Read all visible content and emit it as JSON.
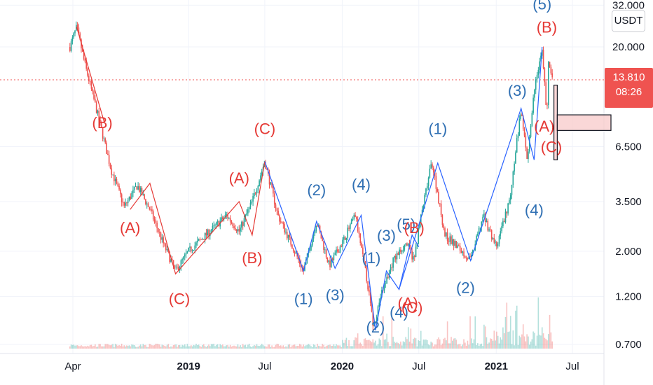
{
  "chart_data": {
    "type": "candlestick",
    "currency": "USDT",
    "current_price": "13.810",
    "countdown": "08:26",
    "colors": {
      "up": "#26a69a",
      "down": "#ef5350",
      "wave_red": "#e53935",
      "wave_blue": "#2962ff",
      "label_blue": "#2f6fb3",
      "price_line": "#ef5350"
    },
    "y_axis": {
      "scale": "log",
      "ticks": [
        "32.000",
        "20.000",
        "13.810",
        "6.500",
        "3.500",
        "2.000",
        "1.200",
        "0.700"
      ]
    },
    "x_axis": {
      "ticks": [
        {
          "label": "Apr",
          "bold": false
        },
        {
          "label": "2019",
          "bold": true
        },
        {
          "label": "Jul",
          "bold": false
        },
        {
          "label": "2020",
          "bold": true
        },
        {
          "label": "Jul",
          "bold": false
        },
        {
          "label": "2021",
          "bold": true
        },
        {
          "label": "Jul",
          "bold": false
        }
      ]
    },
    "price_path": [
      [
        "2018-03-25",
        20
      ],
      [
        "2018-04-10",
        25
      ],
      [
        "2018-05-01",
        16
      ],
      [
        "2018-06-01",
        9
      ],
      [
        "2018-07-01",
        5
      ],
      [
        "2018-08-01",
        3.3
      ],
      [
        "2018-09-01",
        4.2
      ],
      [
        "2018-10-01",
        3.2
      ],
      [
        "2018-11-01",
        2.2
      ],
      [
        "2018-12-01",
        1.6
      ],
      [
        "2019-01-01",
        2.0
      ],
      [
        "2019-02-01",
        2.3
      ],
      [
        "2019-03-01",
        2.6
      ],
      [
        "2019-04-01",
        3.0
      ],
      [
        "2019-05-01",
        2.5
      ],
      [
        "2019-06-01",
        3.5
      ],
      [
        "2019-07-01",
        5.5
      ],
      [
        "2019-08-01",
        3.0
      ],
      [
        "2019-09-01",
        2.2
      ],
      [
        "2019-10-01",
        1.6
      ],
      [
        "2019-11-01",
        2.8
      ],
      [
        "2019-12-01",
        1.7
      ],
      [
        "2020-01-01",
        2.2
      ],
      [
        "2020-02-01",
        3.0
      ],
      [
        "2020-03-01",
        1.4
      ],
      [
        "2020-03-15",
        0.85
      ],
      [
        "2020-04-01",
        1.2
      ],
      [
        "2020-05-01",
        1.8
      ],
      [
        "2020-06-01",
        2.2
      ],
      [
        "2020-06-20",
        1.8
      ],
      [
        "2020-07-01",
        2.6
      ],
      [
        "2020-08-01",
        5.5
      ],
      [
        "2020-09-01",
        2.4
      ],
      [
        "2020-10-01",
        2.1
      ],
      [
        "2020-11-01",
        1.8
      ],
      [
        "2020-12-01",
        3.0
      ],
      [
        "2021-01-01",
        2.1
      ],
      [
        "2021-02-01",
        3.5
      ],
      [
        "2021-03-01",
        10.0
      ],
      [
        "2021-03-15",
        5.5
      ],
      [
        "2021-04-01",
        12.0
      ],
      [
        "2021-04-20",
        20.0
      ],
      [
        "2021-05-01",
        9.0
      ],
      [
        "2021-05-05",
        17.0
      ],
      [
        "2021-05-15",
        13.81
      ]
    ],
    "wave_lines": [
      {
        "color": "red",
        "points": [
          [
            "2018-04-10",
            25
          ],
          [
            "2018-06-15",
            8.5
          ]
        ]
      },
      {
        "color": "red",
        "points": [
          [
            "2018-08-15",
            3.2
          ],
          [
            "2018-10-01",
            4.3
          ],
          [
            "2018-12-01",
            1.55
          ],
          [
            "2019-05-01",
            3.5
          ],
          [
            "2019-06-01",
            2.4
          ],
          [
            "2019-07-01",
            5.5
          ]
        ]
      },
      {
        "color": "blue",
        "points": [
          [
            "2019-07-01",
            5.5
          ],
          [
            "2019-10-01",
            1.6
          ],
          [
            "2019-11-01",
            2.8
          ],
          [
            "2019-12-15",
            1.65
          ],
          [
            "2020-02-15",
            3.0
          ],
          [
            "2020-03-20",
            0.82
          ],
          [
            "2020-04-15",
            1.6
          ],
          [
            "2020-05-15",
            1.3
          ],
          [
            "2020-06-15",
            2.4
          ],
          [
            "2020-07-01",
            2.1
          ]
        ]
      },
      {
        "color": "blue",
        "points": [
          [
            "2020-05-15",
            1.3
          ],
          [
            "2020-08-15",
            5.4
          ],
          [
            "2020-11-01",
            1.8
          ],
          [
            "2021-03-01",
            10.0
          ],
          [
            "2021-04-01",
            5.6
          ],
          [
            "2021-04-20",
            20.0
          ]
        ]
      }
    ],
    "wave_labels": [
      {
        "text": "(B)",
        "color": "red",
        "x": "2018-06-10",
        "y": 8.0
      },
      {
        "text": "(A)",
        "color": "red",
        "x": "2018-08-15",
        "y": 2.45
      },
      {
        "text": "(C)",
        "color": "red",
        "x": "2018-12-10",
        "y": 1.1
      },
      {
        "text": "(A)",
        "color": "red",
        "x": "2019-05-01",
        "y": 4.3
      },
      {
        "text": "(B)",
        "color": "red",
        "x": "2019-06-01",
        "y": 1.75
      },
      {
        "text": "(C)",
        "color": "red",
        "x": "2019-07-01",
        "y": 7.5
      },
      {
        "text": "(1)",
        "color": "blue",
        "x": "2019-10-01",
        "y": 1.1
      },
      {
        "text": "(2)",
        "color": "blue",
        "x": "2019-11-01",
        "y": 3.75
      },
      {
        "text": "(3)",
        "color": "blue",
        "x": "2019-12-15",
        "y": 1.15
      },
      {
        "text": "(4)",
        "color": "blue",
        "x": "2020-02-15",
        "y": 4.0
      },
      {
        "text": "(1)",
        "color": "blue",
        "x": "2020-03-10",
        "y": 1.75
      },
      {
        "text": "(2)",
        "color": "blue",
        "x": "2020-03-20",
        "y": 0.8
      },
      {
        "text": "(3)",
        "color": "blue",
        "x": "2020-04-15",
        "y": 2.25
      },
      {
        "text": "(4)",
        "color": "blue",
        "x": "2020-05-15",
        "y": 0.95
      },
      {
        "text": "(5)",
        "color": "blue",
        "x": "2020-06-01",
        "y": 2.55
      },
      {
        "text": "(B)",
        "color": "red",
        "x": "2020-06-20",
        "y": 2.45
      },
      {
        "text": "(A)",
        "color": "red",
        "x": "2020-06-05",
        "y": 1.05
      },
      {
        "text": "(C)",
        "color": "red",
        "x": "2020-06-15",
        "y": 1.0
      },
      {
        "text": "(1)",
        "color": "blue",
        "x": "2020-08-15",
        "y": 7.5
      },
      {
        "text": "(2)",
        "color": "blue",
        "x": "2020-10-20",
        "y": 1.25
      },
      {
        "text": "(3)",
        "color": "blue",
        "x": "2021-02-20",
        "y": 11.5
      },
      {
        "text": "(4)",
        "color": "blue",
        "x": "2021-04-01",
        "y": 3.0
      },
      {
        "text": "(5)",
        "color": "blue",
        "x": "2021-04-20",
        "y": 30.5
      },
      {
        "text": "(B)",
        "color": "red",
        "x": "2021-05-01",
        "y": 23.5
      },
      {
        "text": "(A)",
        "color": "red",
        "x": "2021-04-25",
        "y": 7.7
      },
      {
        "text": "(C)",
        "color": "red",
        "x": "2021-05-12",
        "y": 6.1
      }
    ],
    "target_zone": {
      "fill": "#f8c9c9",
      "border": "#131722",
      "vertical": {
        "x0": "2021-05-18",
        "x1": "2021-05-26",
        "y0": 5.6,
        "y1": 13.0
      },
      "horizontal": {
        "x0": "2021-05-26",
        "y0": 7.8,
        "y1": 9.3
      }
    },
    "volume": "small red/green bars along the bottom, larger spikes in 2020–2021"
  }
}
